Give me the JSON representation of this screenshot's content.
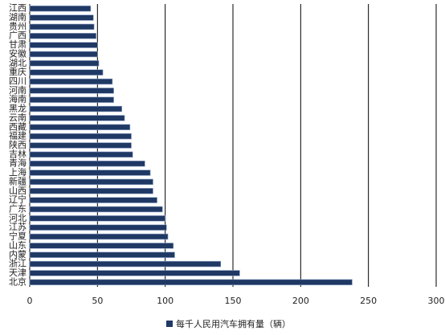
{
  "chart_data": {
    "type": "bar",
    "orientation": "horizontal",
    "categories": [
      "江西",
      "湖南",
      "贵州",
      "广西",
      "甘肃",
      "安徽",
      "湖北",
      "重庆",
      "四川",
      "河南",
      "海南",
      "黑龙",
      "云南",
      "西藏",
      "福建",
      "陕西",
      "吉林",
      "青海",
      "上海",
      "新疆",
      "山西",
      "辽宁",
      "广东",
      "河北",
      "江苏",
      "宁夏",
      "山东",
      "内蒙",
      "浙江",
      "天津",
      "北京"
    ],
    "series": [
      {
        "name": "每千人民用汽车拥有量（辆）",
        "color": "#1f3864",
        "values": [
          45,
          47,
          47.5,
          49,
          50,
          50,
          51,
          54,
          61,
          62,
          62,
          68,
          70,
          74,
          75,
          75,
          76,
          85,
          89,
          91,
          91,
          94,
          98,
          100,
          101,
          102,
          106,
          107,
          141,
          155,
          238
        ]
      }
    ],
    "xlim": [
      0,
      300
    ],
    "xticks": [
      0,
      50,
      100,
      150,
      200,
      250,
      300
    ],
    "grid": true,
    "legend": "bottom"
  }
}
